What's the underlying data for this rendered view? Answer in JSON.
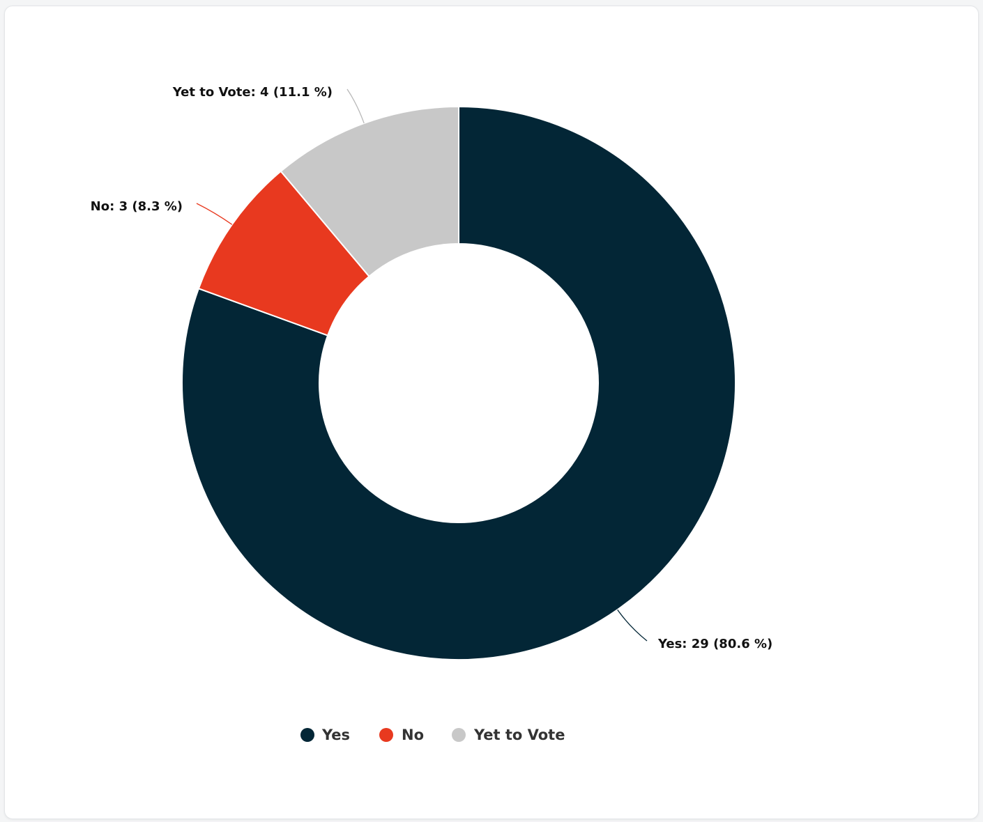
{
  "chart_data": {
    "type": "pie",
    "donut": true,
    "categories": [
      "Yes",
      "No",
      "Yet to Vote"
    ],
    "values": [
      29,
      3,
      4
    ],
    "percentages": [
      80.6,
      8.3,
      11.1
    ],
    "colors": [
      "#032636",
      "#e8391f",
      "#c8c8c8"
    ],
    "data_labels": [
      "Yes: 29 (80.6 %)",
      "No: 3 (8.3 %)",
      "Yet to Vote: 4 (11.1 %)"
    ],
    "legend": {
      "position": "bottom",
      "items": [
        "Yes",
        "No",
        "Yet to Vote"
      ]
    }
  }
}
